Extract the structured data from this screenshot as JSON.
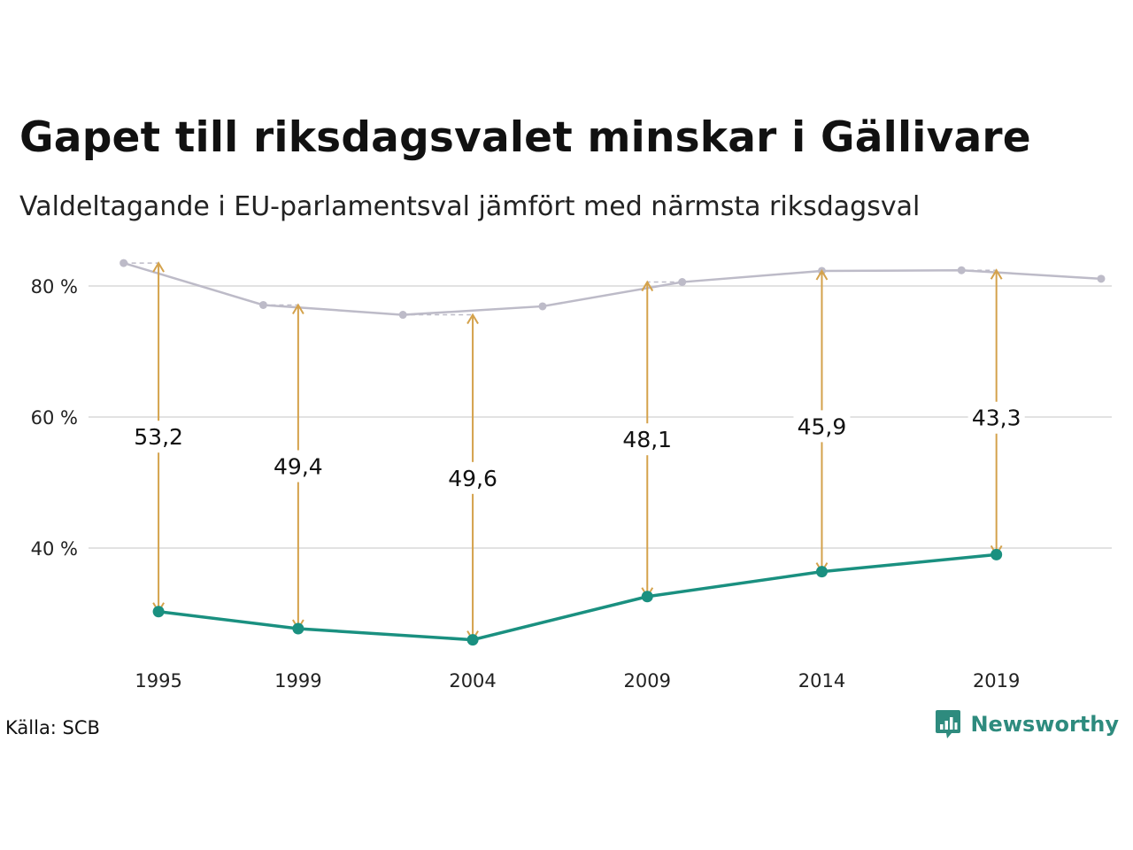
{
  "header": {
    "title": "Gapet till riksdagsvalet minskar i Gällivare",
    "subtitle": "Valdeltagande i EU-parlamentsval jämfört med närmsta riksdagsval"
  },
  "footer": {
    "source": "Källa: SCB",
    "brand": "Newsworthy"
  },
  "colors": {
    "eu": "#1a9080",
    "riksdag": "#bdbbc8",
    "gap_arrow": "#d4a24c",
    "grid": "#e2e2e2"
  },
  "chart_data": {
    "type": "line",
    "title": "Gapet till riksdagsvalet minskar i Gällivare",
    "subtitle": "Valdeltagande i EU-parlamentsval jämfört med närmsta riksdagsval",
    "x_range": [
      1993.4,
      2022.0
    ],
    "ylim": [
      22,
      86
    ],
    "y_ticks": [
      40,
      60,
      80
    ],
    "y_tick_labels": [
      "40 %",
      "60 %",
      "80 %"
    ],
    "x_ticks": [
      1995,
      1999,
      2004,
      2009,
      2014,
      2019
    ],
    "x_tick_labels": [
      "1995",
      "1999",
      "2004",
      "2009",
      "2014",
      "2019"
    ],
    "grid": true,
    "series": [
      {
        "key": "riksdag",
        "x": [
          1994,
          1998,
          2002,
          2006,
          2010,
          2014,
          2018,
          2022
        ],
        "y": [
          83.5,
          77.1,
          75.6,
          76.9,
          80.6,
          82.3,
          82.4,
          81.1
        ]
      },
      {
        "key": "eu",
        "x": [
          1995,
          1999,
          2004,
          2009,
          2014,
          2019
        ],
        "y": [
          30.3,
          27.7,
          26.0,
          32.6,
          36.4,
          39.0
        ]
      }
    ],
    "gaps": [
      {
        "x": 1995,
        "top": 83.5,
        "bottom": 30.3,
        "label": "53,2",
        "label_y": 57.0
      },
      {
        "x": 1999,
        "top": 77.1,
        "bottom": 27.7,
        "label": "49,4",
        "label_y": 52.5
      },
      {
        "x": 2004,
        "top": 75.6,
        "bottom": 26.0,
        "label": "49,6",
        "label_y": 50.7
      },
      {
        "x": 2009,
        "top": 80.6,
        "bottom": 32.6,
        "label": "48,1",
        "label_y": 56.6
      },
      {
        "x": 2014,
        "top": 82.3,
        "bottom": 36.4,
        "label": "45,9",
        "label_y": 58.6
      },
      {
        "x": 2019,
        "top": 82.4,
        "bottom": 39.0,
        "label": "43,3",
        "label_y": 59.9
      }
    ]
  }
}
